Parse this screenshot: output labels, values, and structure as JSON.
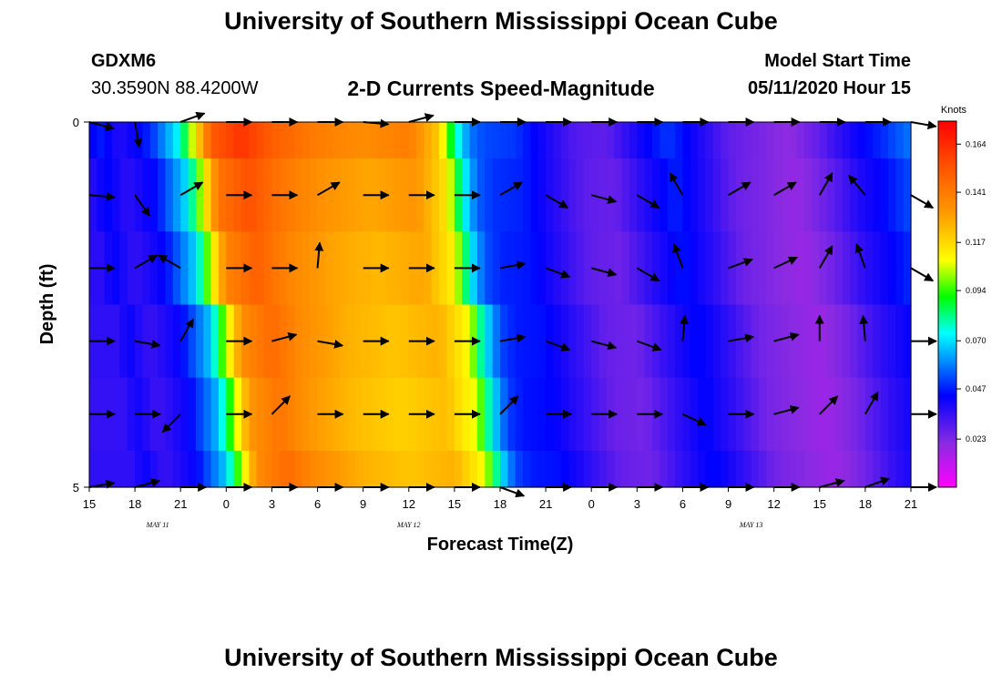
{
  "header": {
    "title": "University of Southern Mississippi Ocean Cube",
    "station": "GDXM6",
    "coords": "30.3590N 88.4200W",
    "subtitle": "2-D Currents Speed-Magnitude",
    "start_label": "Model Start Time",
    "start_value": "05/11/2020 Hour 15"
  },
  "footer": {
    "title": "University of Southern Mississippi Ocean Cube"
  },
  "chart_data": {
    "type": "heatmap",
    "title": "2-D Currents Speed-Magnitude",
    "xlabel": "Forecast Time(Z)",
    "ylabel": "Depth (ft)",
    "x_ticks": [
      "15",
      "18",
      "21",
      "0",
      "3",
      "6",
      "9",
      "12",
      "15",
      "18",
      "21",
      "0",
      "3",
      "6",
      "9",
      "12",
      "15",
      "18",
      "21"
    ],
    "x_range_hours": [
      0,
      54
    ],
    "day_labels": [
      {
        "label": "MAY 11",
        "hour": 4.5
      },
      {
        "label": "MAY 12",
        "hour": 21
      },
      {
        "label": "MAY 13",
        "hour": 43.5
      }
    ],
    "y_ticks": [
      "0",
      "5"
    ],
    "ylim": [
      0,
      5
    ],
    "colorbar": {
      "unit": "Knots",
      "ticks": [
        0.164,
        0.141,
        0.117,
        0.094,
        0.07,
        0.047,
        0.023
      ],
      "range": [
        0.0,
        0.175
      ]
    },
    "speed_profile": [
      {
        "h": 0,
        "v": 0.04
      },
      {
        "h": 0.5,
        "v": 0.048
      },
      {
        "h": 2,
        "v": 0.038
      },
      {
        "h": 4,
        "v": 0.048
      },
      {
        "h": 6,
        "v": 0.075
      },
      {
        "h": 7,
        "v": 0.115
      },
      {
        "h": 8,
        "v": 0.15
      },
      {
        "h": 10,
        "v": 0.162
      },
      {
        "h": 12,
        "v": 0.15
      },
      {
        "h": 15,
        "v": 0.14
      },
      {
        "h": 18,
        "v": 0.135
      },
      {
        "h": 21,
        "v": 0.14
      },
      {
        "h": 23,
        "v": 0.12
      },
      {
        "h": 24,
        "v": 0.08
      },
      {
        "h": 25,
        "v": 0.058
      },
      {
        "h": 26,
        "v": 0.052
      },
      {
        "h": 28,
        "v": 0.05
      },
      {
        "h": 30,
        "v": 0.04
      },
      {
        "h": 32,
        "v": 0.03
      },
      {
        "h": 34,
        "v": 0.028
      },
      {
        "h": 36,
        "v": 0.04
      },
      {
        "h": 38,
        "v": 0.05
      },
      {
        "h": 40,
        "v": 0.04
      },
      {
        "h": 42,
        "v": 0.028
      },
      {
        "h": 46,
        "v": 0.02
      },
      {
        "h": 48,
        "v": 0.028
      },
      {
        "h": 50,
        "v": 0.04
      },
      {
        "h": 52,
        "v": 0.048
      },
      {
        "h": 54,
        "v": 0.058
      }
    ],
    "depth_layers": [
      {
        "depth": 0.0,
        "shift": 0,
        "scale": 1.0
      },
      {
        "depth": 1.0,
        "shift": 0.5,
        "scale": 0.95
      },
      {
        "depth": 2.0,
        "shift": 1.0,
        "scale": 0.92
      },
      {
        "depth": 3.0,
        "shift": 2.0,
        "scale": 0.9
      },
      {
        "depth": 4.0,
        "shift": 2.5,
        "scale": 0.88
      },
      {
        "depth": 5.0,
        "shift": 3.0,
        "scale": 0.9
      }
    ],
    "vector_rows": [
      0,
      1,
      2,
      3,
      4,
      5
    ],
    "vector_times": [
      0,
      3,
      6,
      9,
      12,
      15,
      18,
      21,
      24,
      27,
      30,
      33,
      36,
      39,
      42,
      45,
      48,
      51,
      54
    ],
    "vector_directions_deg": [
      [
        -15,
        -80,
        20,
        0,
        0,
        0,
        -5,
        15,
        0,
        0,
        0,
        0,
        0,
        0,
        0,
        0,
        0,
        0,
        -10
      ],
      [
        -5,
        -55,
        30,
        0,
        0,
        30,
        0,
        0,
        0,
        30,
        -30,
        -15,
        -30,
        120,
        30,
        30,
        60,
        130,
        -30
      ],
      [
        0,
        30,
        150,
        0,
        0,
        85,
        0,
        0,
        0,
        10,
        -20,
        -15,
        -30,
        110,
        20,
        25,
        60,
        110,
        -30
      ],
      [
        0,
        -10,
        60,
        0,
        15,
        -10,
        0,
        0,
        0,
        10,
        -20,
        -15,
        -20,
        85,
        10,
        15,
        90,
        95,
        0
      ],
      [
        0,
        0,
        -135,
        0,
        45,
        0,
        0,
        0,
        0,
        45,
        0,
        0,
        0,
        -25,
        0,
        15,
        45,
        60,
        0
      ],
      [
        10,
        15,
        0,
        0,
        0,
        0,
        0,
        0,
        0,
        -20,
        0,
        0,
        0,
        0,
        0,
        0,
        15,
        20,
        0
      ]
    ]
  }
}
